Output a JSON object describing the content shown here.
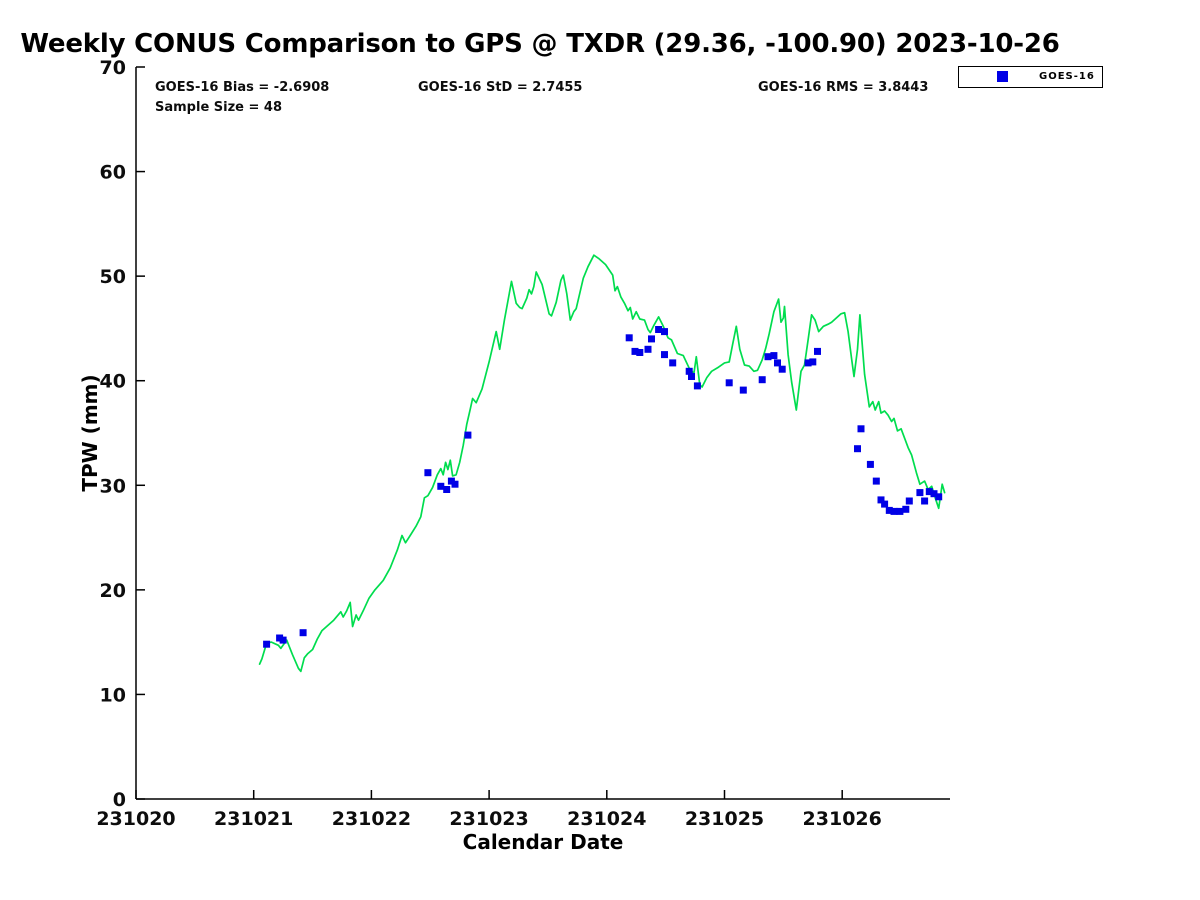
{
  "chart": {
    "title": "Weekly CONUS Comparison to GPS @ TXDR (29.36, -100.90) 2023-10-26",
    "stats": {
      "bias": "GOES-16 Bias = -2.6908",
      "std": "GOES-16 StD = 2.7455",
      "rms": "GOES-16 RMS = 3.8443",
      "sample_size": "Sample Size = 48"
    },
    "legend": {
      "label": "GOES-16",
      "marker_color": "#0000e6"
    },
    "xlabel": "Calendar Date",
    "ylabel": "TPW (mm)"
  },
  "chart_data": {
    "type": "line",
    "title": "Weekly CONUS Comparison to GPS @ TXDR (29.36, -100.90) 2023-10-26",
    "xlabel": "Calendar Date",
    "ylabel": "TPW (mm)",
    "xlim": [
      231020,
      231026.93
    ],
    "ylim": [
      0,
      70
    ],
    "x_ticks": [
      231020,
      231021,
      231022,
      231023,
      231024,
      231025,
      231026
    ],
    "y_ticks": [
      0,
      10,
      20,
      30,
      40,
      50,
      60,
      70
    ],
    "grid": false,
    "legend_position": "top-right",
    "annotations": [
      "GOES-16 Bias = -2.6908",
      "GOES-16 StD = 2.7455",
      "GOES-16 RMS = 3.8443",
      "Sample Size = 48"
    ],
    "series": [
      {
        "name": "GPS",
        "type": "line",
        "color": "#00dd4e",
        "points": [
          [
            231021.05,
            12.9
          ],
          [
            231021.07,
            13.4
          ],
          [
            231021.11,
            14.9
          ],
          [
            231021.15,
            15.0
          ],
          [
            231021.21,
            14.7
          ],
          [
            231021.23,
            14.4
          ],
          [
            231021.28,
            15.2
          ],
          [
            231021.33,
            13.8
          ],
          [
            231021.38,
            12.5
          ],
          [
            231021.4,
            12.2
          ],
          [
            231021.43,
            13.5
          ],
          [
            231021.46,
            13.9
          ],
          [
            231021.5,
            14.3
          ],
          [
            231021.54,
            15.3
          ],
          [
            231021.58,
            16.1
          ],
          [
            231021.63,
            16.6
          ],
          [
            231021.68,
            17.1
          ],
          [
            231021.74,
            17.9
          ],
          [
            231021.76,
            17.4
          ],
          [
            231021.79,
            18.0
          ],
          [
            231021.82,
            18.8
          ],
          [
            231021.84,
            16.5
          ],
          [
            231021.87,
            17.6
          ],
          [
            231021.89,
            17.1
          ],
          [
            231021.93,
            18.0
          ],
          [
            231021.98,
            19.2
          ],
          [
            231022.03,
            20.0
          ],
          [
            231022.1,
            20.9
          ],
          [
            231022.16,
            22.1
          ],
          [
            231022.22,
            23.8
          ],
          [
            231022.26,
            25.2
          ],
          [
            231022.29,
            24.5
          ],
          [
            231022.33,
            25.2
          ],
          [
            231022.38,
            26.1
          ],
          [
            231022.42,
            27.0
          ],
          [
            231022.45,
            28.8
          ],
          [
            231022.48,
            29.0
          ],
          [
            231022.52,
            29.8
          ],
          [
            231022.56,
            31.0
          ],
          [
            231022.59,
            31.6
          ],
          [
            231022.61,
            31.0
          ],
          [
            231022.63,
            32.2
          ],
          [
            231022.65,
            31.5
          ],
          [
            231022.67,
            32.4
          ],
          [
            231022.69,
            30.9
          ],
          [
            231022.72,
            31.0
          ],
          [
            231022.75,
            32.2
          ],
          [
            231022.78,
            33.8
          ],
          [
            231022.81,
            35.8
          ],
          [
            231022.84,
            37.3
          ],
          [
            231022.86,
            38.3
          ],
          [
            231022.89,
            37.9
          ],
          [
            231022.94,
            39.2
          ],
          [
            231023.0,
            41.8
          ],
          [
            231023.06,
            44.7
          ],
          [
            231023.09,
            43.0
          ],
          [
            231023.13,
            45.8
          ],
          [
            231023.19,
            49.5
          ],
          [
            231023.23,
            47.4
          ],
          [
            231023.26,
            47.0
          ],
          [
            231023.28,
            46.9
          ],
          [
            231023.32,
            47.9
          ],
          [
            231023.34,
            48.7
          ],
          [
            231023.36,
            48.3
          ],
          [
            231023.38,
            49.0
          ],
          [
            231023.4,
            50.4
          ],
          [
            231023.45,
            49.2
          ],
          [
            231023.51,
            46.4
          ],
          [
            231023.53,
            46.2
          ],
          [
            231023.57,
            47.5
          ],
          [
            231023.61,
            49.6
          ],
          [
            231023.63,
            50.1
          ],
          [
            231023.66,
            48.3
          ],
          [
            231023.69,
            45.8
          ],
          [
            231023.72,
            46.6
          ],
          [
            231023.74,
            46.9
          ],
          [
            231023.8,
            49.8
          ],
          [
            231023.84,
            50.9
          ],
          [
            231023.89,
            52.0
          ],
          [
            231023.93,
            51.7
          ],
          [
            231023.99,
            51.1
          ],
          [
            231024.05,
            50.1
          ],
          [
            231024.07,
            48.6
          ],
          [
            231024.09,
            49.0
          ],
          [
            231024.12,
            48.0
          ],
          [
            231024.15,
            47.4
          ],
          [
            231024.18,
            46.7
          ],
          [
            231024.2,
            47.0
          ],
          [
            231024.22,
            45.9
          ],
          [
            231024.25,
            46.6
          ],
          [
            231024.28,
            45.9
          ],
          [
            231024.32,
            45.8
          ],
          [
            231024.35,
            44.9
          ],
          [
            231024.37,
            44.6
          ],
          [
            231024.4,
            45.3
          ],
          [
            231024.44,
            46.1
          ],
          [
            231024.48,
            45.2
          ],
          [
            231024.52,
            44.1
          ],
          [
            231024.55,
            43.9
          ],
          [
            231024.6,
            42.6
          ],
          [
            231024.65,
            42.4
          ],
          [
            231024.7,
            41.2
          ],
          [
            231024.74,
            40.7
          ],
          [
            231024.76,
            42.3
          ],
          [
            231024.79,
            39.6
          ],
          [
            231024.81,
            39.4
          ],
          [
            231024.85,
            40.3
          ],
          [
            231024.89,
            40.9
          ],
          [
            231024.95,
            41.3
          ],
          [
            231025.0,
            41.7
          ],
          [
            231025.04,
            41.8
          ],
          [
            231025.07,
            43.5
          ],
          [
            231025.1,
            45.2
          ],
          [
            231025.13,
            43.0
          ],
          [
            231025.17,
            41.5
          ],
          [
            231025.21,
            41.4
          ],
          [
            231025.25,
            40.9
          ],
          [
            231025.28,
            41.0
          ],
          [
            231025.32,
            42.0
          ],
          [
            231025.35,
            43.1
          ],
          [
            231025.38,
            44.5
          ],
          [
            231025.42,
            46.6
          ],
          [
            231025.46,
            47.8
          ],
          [
            231025.48,
            45.6
          ],
          [
            231025.5,
            46.0
          ],
          [
            231025.51,
            47.1
          ],
          [
            231025.54,
            42.5
          ],
          [
            231025.57,
            39.9
          ],
          [
            231025.61,
            37.2
          ],
          [
            231025.65,
            40.9
          ],
          [
            231025.68,
            41.5
          ],
          [
            231025.71,
            43.9
          ],
          [
            231025.74,
            46.3
          ],
          [
            231025.77,
            45.8
          ],
          [
            231025.8,
            44.7
          ],
          [
            231025.84,
            45.2
          ],
          [
            231025.88,
            45.4
          ],
          [
            231025.91,
            45.6
          ],
          [
            231025.95,
            46.0
          ],
          [
            231025.99,
            46.4
          ],
          [
            231026.02,
            46.5
          ],
          [
            231026.05,
            44.7
          ],
          [
            231026.08,
            42.1
          ],
          [
            231026.1,
            40.4
          ],
          [
            231026.13,
            43.0
          ],
          [
            231026.15,
            46.3
          ],
          [
            231026.19,
            40.6
          ],
          [
            231026.23,
            37.5
          ],
          [
            231026.26,
            38.0
          ],
          [
            231026.28,
            37.2
          ],
          [
            231026.31,
            38.0
          ],
          [
            231026.33,
            36.9
          ],
          [
            231026.36,
            37.1
          ],
          [
            231026.39,
            36.7
          ],
          [
            231026.42,
            36.1
          ],
          [
            231026.44,
            36.4
          ],
          [
            231026.47,
            35.2
          ],
          [
            231026.5,
            35.4
          ],
          [
            231026.53,
            34.5
          ],
          [
            231026.56,
            33.6
          ],
          [
            231026.59,
            32.9
          ],
          [
            231026.63,
            31.2
          ],
          [
            231026.66,
            30.1
          ],
          [
            231026.7,
            30.4
          ],
          [
            231026.73,
            29.6
          ],
          [
            231026.76,
            29.9
          ],
          [
            231026.79,
            28.8
          ],
          [
            231026.82,
            27.8
          ],
          [
            231026.85,
            30.1
          ],
          [
            231026.87,
            29.3
          ]
        ]
      },
      {
        "name": "GOES-16",
        "type": "scatter",
        "marker": "square",
        "color": "#0000e6",
        "points": [
          [
            231021.11,
            14.8
          ],
          [
            231021.22,
            15.4
          ],
          [
            231021.25,
            15.2
          ],
          [
            231021.42,
            15.9
          ],
          [
            231022.48,
            31.2
          ],
          [
            231022.59,
            29.9
          ],
          [
            231022.64,
            29.6
          ],
          [
            231022.68,
            30.4
          ],
          [
            231022.71,
            30.1
          ],
          [
            231022.82,
            34.8
          ],
          [
            231024.19,
            44.1
          ],
          [
            231024.24,
            42.8
          ],
          [
            231024.28,
            42.7
          ],
          [
            231024.35,
            43.0
          ],
          [
            231024.38,
            44.0
          ],
          [
            231024.44,
            44.9
          ],
          [
            231024.49,
            44.7
          ],
          [
            231024.49,
            42.5
          ],
          [
            231024.56,
            41.7
          ],
          [
            231024.7,
            40.9
          ],
          [
            231024.72,
            40.4
          ],
          [
            231024.77,
            39.5
          ],
          [
            231025.04,
            39.8
          ],
          [
            231025.16,
            39.1
          ],
          [
            231025.32,
            40.1
          ],
          [
            231025.37,
            42.3
          ],
          [
            231025.42,
            42.4
          ],
          [
            231025.45,
            41.7
          ],
          [
            231025.49,
            41.1
          ],
          [
            231025.71,
            41.7
          ],
          [
            231025.75,
            41.8
          ],
          [
            231025.79,
            42.8
          ],
          [
            231026.13,
            33.5
          ],
          [
            231026.16,
            35.4
          ],
          [
            231026.24,
            32.0
          ],
          [
            231026.29,
            30.4
          ],
          [
            231026.33,
            28.6
          ],
          [
            231026.36,
            28.2
          ],
          [
            231026.4,
            27.6
          ],
          [
            231026.44,
            27.5
          ],
          [
            231026.49,
            27.5
          ],
          [
            231026.54,
            27.7
          ],
          [
            231026.57,
            28.5
          ],
          [
            231026.66,
            29.3
          ],
          [
            231026.7,
            28.5
          ],
          [
            231026.74,
            29.4
          ],
          [
            231026.78,
            29.2
          ],
          [
            231026.82,
            28.9
          ]
        ]
      }
    ]
  }
}
